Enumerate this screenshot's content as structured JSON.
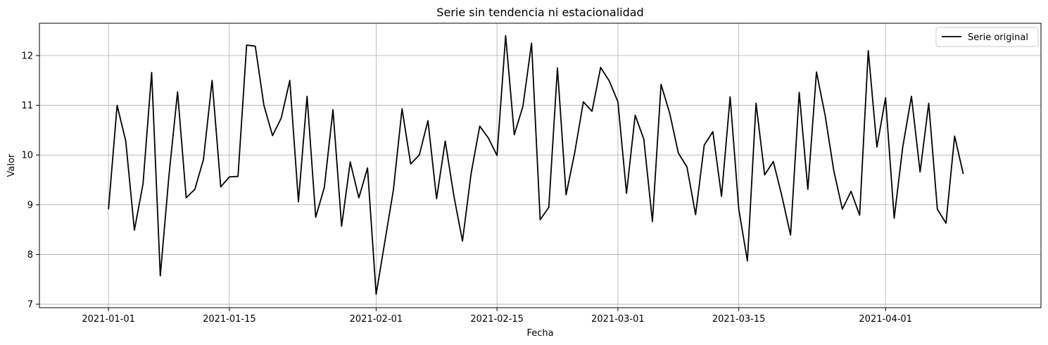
{
  "chart_data": {
    "type": "line",
    "title": "Serie sin tendencia ni estacionalidad",
    "xlabel": "Fecha",
    "ylabel": "Valor",
    "x_type": "date",
    "xlim": [
      "2020-12-24",
      "2021-04-19"
    ],
    "ylim": [
      6.93,
      12.65
    ],
    "grid": true,
    "legend_position": "top-right",
    "x_ticks": [
      "2021-01-01",
      "2021-01-15",
      "2021-02-01",
      "2021-02-15",
      "2021-03-01",
      "2021-03-15",
      "2021-04-01"
    ],
    "y_ticks": [
      7,
      8,
      9,
      10,
      11,
      12
    ],
    "series": [
      {
        "name": "Serie original",
        "color": "#000000",
        "x_start": "2021-01-01",
        "x_step_days": 1,
        "values": [
          8.91,
          11.0,
          10.28,
          8.49,
          9.42,
          11.66,
          7.57,
          9.58,
          11.27,
          9.14,
          9.31,
          9.91,
          11.5,
          9.36,
          9.56,
          9.57,
          12.21,
          12.19,
          11.0,
          10.39,
          10.74,
          11.5,
          9.06,
          11.18,
          8.75,
          9.35,
          10.91,
          8.57,
          9.86,
          9.14,
          9.74,
          7.2,
          8.25,
          9.3,
          10.93,
          9.82,
          10.0,
          10.69,
          9.12,
          10.28,
          9.18,
          8.27,
          9.63,
          10.58,
          10.34,
          9.99,
          12.4,
          10.41,
          10.98,
          12.25,
          8.7,
          8.95,
          11.75,
          9.2,
          10.05,
          11.07,
          10.88,
          11.76,
          11.49,
          11.07,
          9.23,
          10.8,
          10.32,
          8.66,
          11.42,
          10.84,
          10.04,
          9.76,
          8.8,
          10.2,
          10.47,
          9.17,
          11.17,
          8.91,
          7.87,
          11.04,
          9.6,
          9.87,
          9.17,
          8.39,
          11.26,
          9.31,
          11.67,
          10.8,
          9.69,
          8.91,
          9.27,
          8.79,
          12.1,
          10.16,
          11.15,
          8.73,
          10.17,
          11.18,
          9.66,
          11.04,
          8.91,
          8.63,
          10.38,
          9.62
        ]
      }
    ]
  }
}
